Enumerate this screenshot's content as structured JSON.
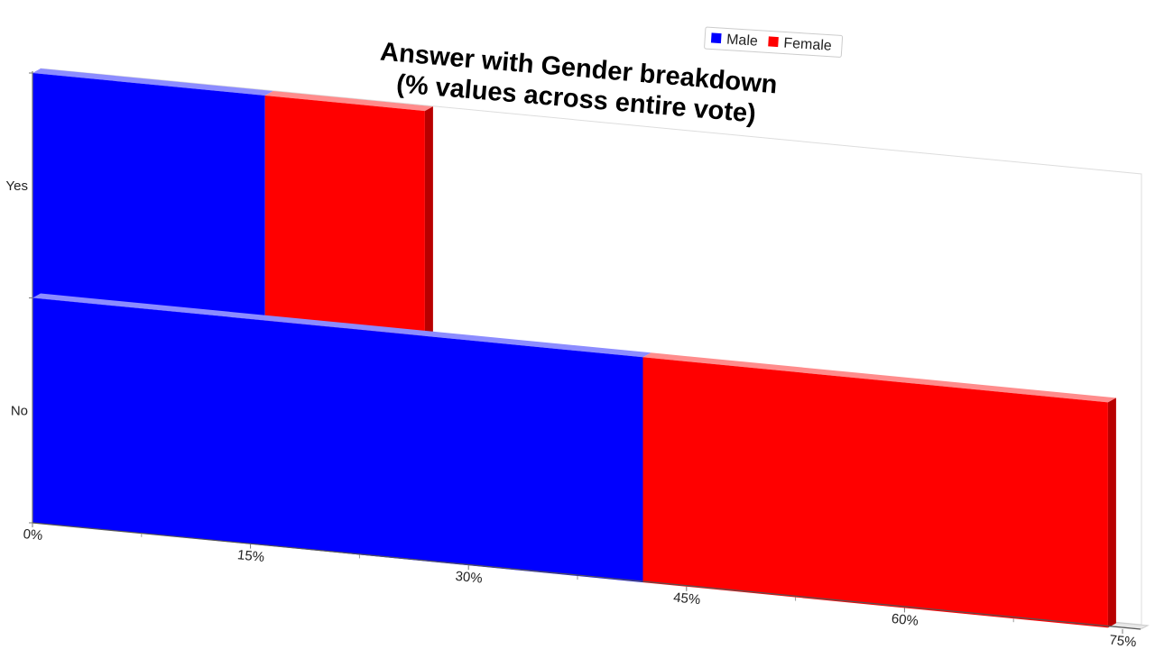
{
  "chart_data": {
    "type": "bar",
    "orientation": "horizontal",
    "stacked": true,
    "title_lines": [
      "Answer with Gender breakdown",
      "(% values across entire vote)"
    ],
    "categories": [
      "Yes",
      "No"
    ],
    "series": [
      {
        "name": "Male",
        "color": "#0000ff",
        "values": [
          16,
          42
        ]
      },
      {
        "name": "Female",
        "color": "#ff0000",
        "values": [
          11,
          32
        ]
      }
    ],
    "x_ticks": [
      "0%",
      "15%",
      "30%",
      "45%",
      "60%",
      "75%"
    ],
    "xlim": [
      0,
      75
    ],
    "grid": false,
    "legend_position": "top-right",
    "style": "3d-perspective"
  }
}
